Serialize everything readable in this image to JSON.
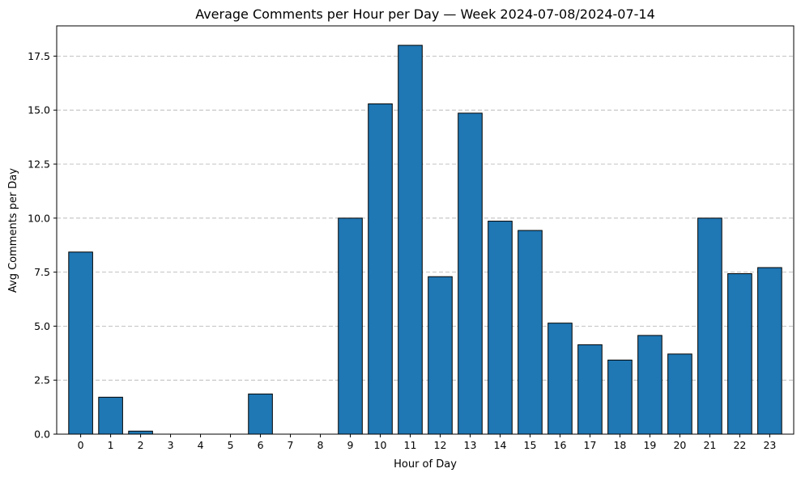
{
  "chart_data": {
    "type": "bar",
    "title": "Average Comments per Hour per Day — Week 2024-07-08/2024-07-14",
    "xlabel": "Hour of Day",
    "ylabel": "Avg Comments per Day",
    "categories": [
      "0",
      "1",
      "2",
      "3",
      "4",
      "5",
      "6",
      "7",
      "8",
      "9",
      "10",
      "11",
      "12",
      "13",
      "14",
      "15",
      "16",
      "17",
      "18",
      "19",
      "20",
      "21",
      "22",
      "23"
    ],
    "values": [
      8.43,
      1.71,
      0.14,
      0,
      0,
      0,
      1.86,
      0,
      0,
      10.0,
      15.29,
      18.0,
      7.29,
      14.86,
      9.86,
      9.43,
      5.14,
      4.14,
      3.43,
      4.57,
      3.71,
      10.0,
      7.43,
      7.71
    ],
    "ylim": [
      0,
      18.9
    ],
    "yticks": [
      "0.0",
      "2.5",
      "5.0",
      "7.5",
      "10.0",
      "12.5",
      "15.0",
      "17.5"
    ],
    "grid": "y-dashed",
    "colors": {
      "bar": "#1f77b4",
      "edge": "#000000"
    }
  }
}
